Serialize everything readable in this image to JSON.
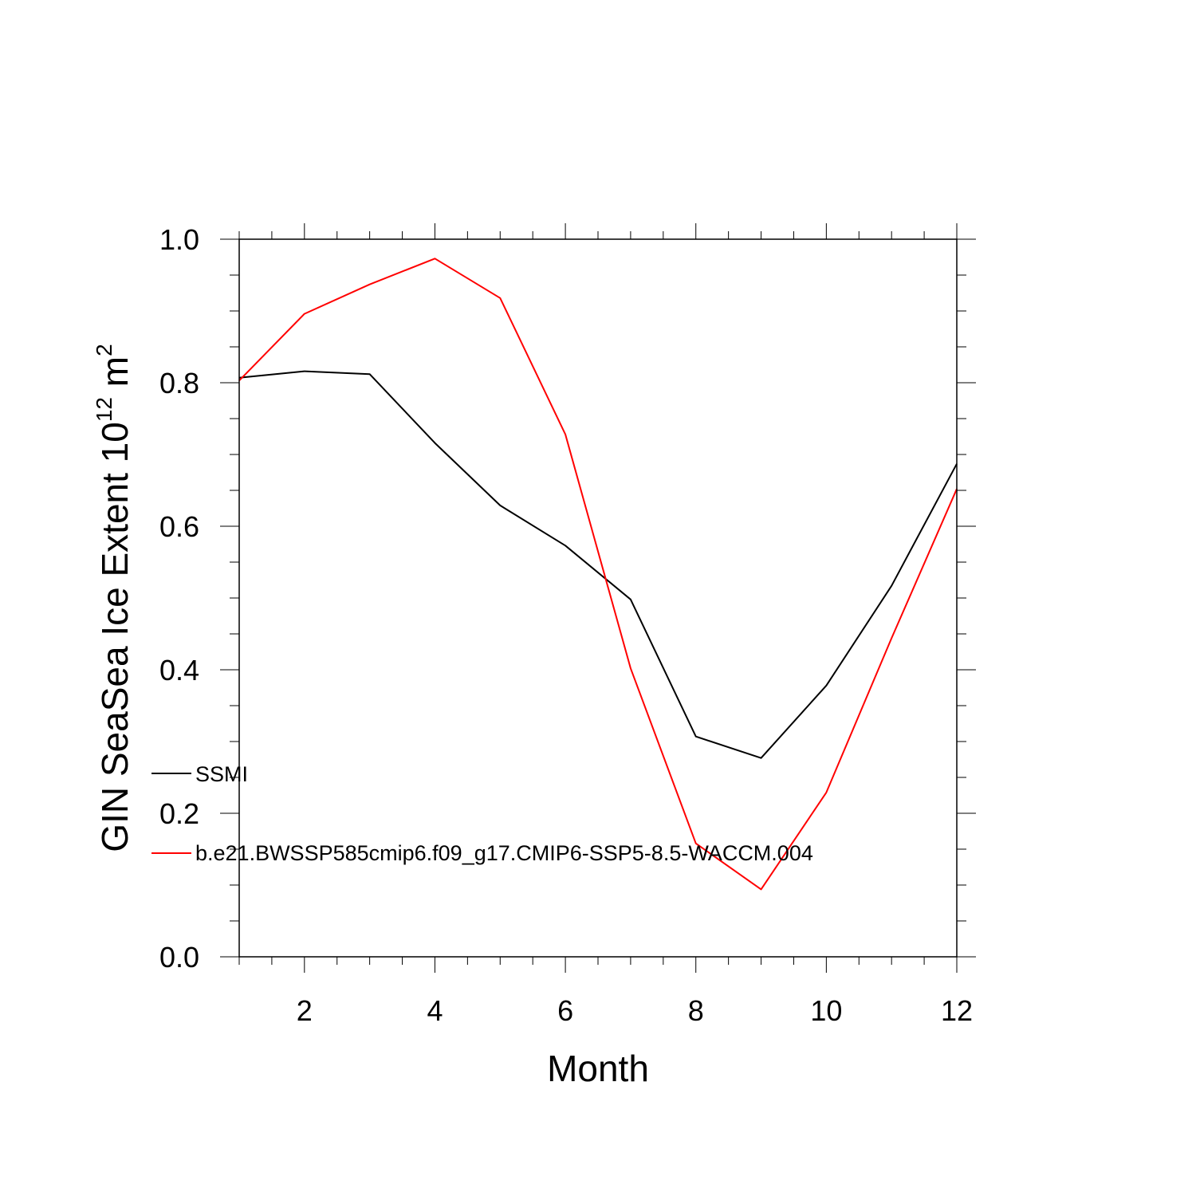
{
  "chart_data": {
    "type": "line",
    "xlabel": "Month",
    "ylabel_main": "GIN SeaSea Ice Extent 10",
    "ylabel_sup": "12",
    "ylabel_unit": " m",
    "ylabel_unit_sup": "2",
    "xlim": [
      1,
      12
    ],
    "ylim": [
      0.0,
      1.0
    ],
    "x_ticks": [
      2,
      4,
      6,
      8,
      10,
      12
    ],
    "x_tick_labels": [
      "2",
      "4",
      "6",
      "8",
      "10",
      "12"
    ],
    "y_ticks": [
      0.0,
      0.2,
      0.4,
      0.6,
      0.8,
      1.0
    ],
    "y_tick_labels": [
      "0.0",
      "0.2",
      "0.4",
      "0.6",
      "0.8",
      "1.0"
    ],
    "x": [
      1,
      2,
      3,
      4,
      5,
      6,
      7,
      8,
      9,
      10,
      11,
      12
    ],
    "series": [
      {
        "name": "SSMI",
        "color": "#000000",
        "values": [
          0.807,
          0.816,
          0.812,
          0.716,
          0.629,
          0.573,
          0.498,
          0.307,
          0.277,
          0.378,
          0.517,
          0.687
        ]
      },
      {
        "name": "b.e21.BWSSP585cmip6.f09_g17.CMIP6-SSP5-8.5-WACCM.004",
        "color": "#ff0000",
        "values": [
          0.803,
          0.896,
          0.937,
          0.973,
          0.918,
          0.728,
          0.402,
          0.158,
          0.094,
          0.229,
          0.444,
          0.652
        ]
      }
    ],
    "legend_position": "inside-left",
    "grid": false
  }
}
